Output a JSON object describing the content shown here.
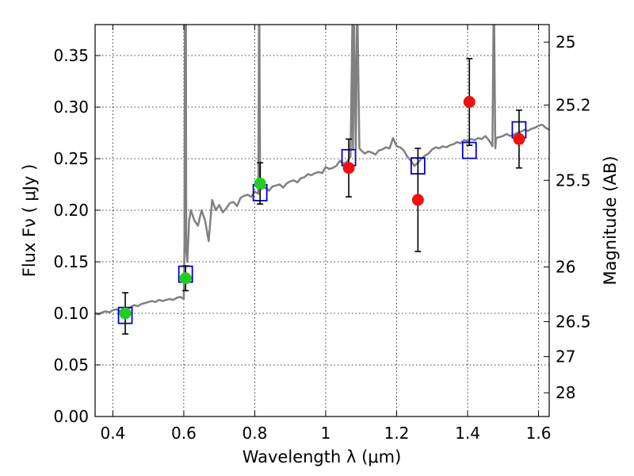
{
  "chart_data": {
    "type": "scatter",
    "xlabel": "Wavelength  λ (μm)",
    "ylabel": "Flux  Fν  ( μJy )",
    "y2label": "Magnitude (AB)",
    "xlim": [
      0.35,
      1.63
    ],
    "ylim": [
      0.0,
      0.38
    ],
    "x_ticks": [
      0.4,
      0.6,
      0.8,
      1.0,
      1.2,
      1.4,
      1.6
    ],
    "x_tick_labels": [
      "0.4",
      "0.6",
      "0.8",
      "1",
      "1.2",
      "1.4",
      "1.6"
    ],
    "y_ticks": [
      0.0,
      0.05,
      0.1,
      0.15,
      0.2,
      0.25,
      0.3,
      0.35
    ],
    "y_tick_labels": [
      "0.00",
      "0.05",
      "0.10",
      "0.15",
      "0.20",
      "0.25",
      "0.30",
      "0.35"
    ],
    "y2_ticks": [
      {
        "label": "25",
        "flux": 0.363
      },
      {
        "label": "25.2",
        "flux": 0.302
      },
      {
        "label": "25.5",
        "flux": 0.229
      },
      {
        "label": "26",
        "flux": 0.145
      },
      {
        "label": "26.5",
        "flux": 0.092
      },
      {
        "label": "27",
        "flux": 0.058
      },
      {
        "label": "28",
        "flux": 0.023
      }
    ],
    "grid": true,
    "grid_style": "dotted",
    "colors": {
      "spectrum": "#808080",
      "model_box": "#0000cc",
      "detection_green": "#22cc22",
      "detection_red": "#ee1111",
      "errorbar": "#000000"
    },
    "spectrum": {
      "x": [
        0.35,
        0.36,
        0.37,
        0.38,
        0.39,
        0.4,
        0.41,
        0.42,
        0.43,
        0.44,
        0.45,
        0.46,
        0.47,
        0.48,
        0.49,
        0.5,
        0.51,
        0.52,
        0.53,
        0.54,
        0.55,
        0.56,
        0.57,
        0.58,
        0.59,
        0.6,
        0.602,
        0.603,
        0.604,
        0.606,
        0.607,
        0.61,
        0.615,
        0.62,
        0.63,
        0.64,
        0.65,
        0.66,
        0.67,
        0.68,
        0.69,
        0.7,
        0.71,
        0.72,
        0.73,
        0.74,
        0.75,
        0.76,
        0.77,
        0.78,
        0.79,
        0.8,
        0.81,
        0.812,
        0.813,
        0.815,
        0.817,
        0.82,
        0.83,
        0.84,
        0.85,
        0.86,
        0.87,
        0.88,
        0.89,
        0.9,
        0.91,
        0.92,
        0.93,
        0.94,
        0.95,
        0.96,
        0.97,
        0.98,
        0.99,
        1.0,
        1.01,
        1.02,
        1.03,
        1.04,
        1.05,
        1.06,
        1.07,
        1.075,
        1.077,
        1.08,
        1.085,
        1.088,
        1.09,
        1.095,
        1.1,
        1.11,
        1.12,
        1.13,
        1.14,
        1.15,
        1.16,
        1.17,
        1.18,
        1.19,
        1.2,
        1.21,
        1.22,
        1.23,
        1.24,
        1.25,
        1.26,
        1.27,
        1.28,
        1.29,
        1.3,
        1.31,
        1.32,
        1.33,
        1.34,
        1.35,
        1.36,
        1.37,
        1.38,
        1.39,
        1.4,
        1.41,
        1.42,
        1.43,
        1.44,
        1.45,
        1.46,
        1.47,
        1.473,
        1.475,
        1.478,
        1.48,
        1.49,
        1.5,
        1.51,
        1.52,
        1.53,
        1.54,
        1.55,
        1.56,
        1.57,
        1.58,
        1.59,
        1.6,
        1.61,
        1.62,
        1.63
      ],
      "y": [
        0.1,
        0.099,
        0.101,
        0.102,
        0.101,
        0.103,
        0.104,
        0.102,
        0.105,
        0.104,
        0.106,
        0.108,
        0.107,
        0.109,
        0.11,
        0.111,
        0.112,
        0.111,
        0.113,
        0.112,
        0.113,
        0.114,
        0.113,
        0.115,
        0.116,
        0.114,
        0.17,
        0.38,
        0.2,
        0.38,
        0.16,
        0.15,
        0.19,
        0.2,
        0.19,
        0.185,
        0.2,
        0.19,
        0.17,
        0.21,
        0.2,
        0.205,
        0.198,
        0.202,
        0.207,
        0.208,
        0.204,
        0.212,
        0.214,
        0.215,
        0.213,
        0.218,
        0.216,
        0.38,
        0.38,
        0.23,
        0.22,
        0.221,
        0.222,
        0.219,
        0.223,
        0.224,
        0.225,
        0.222,
        0.226,
        0.228,
        0.229,
        0.227,
        0.231,
        0.232,
        0.235,
        0.234,
        0.236,
        0.237,
        0.236,
        0.242,
        0.24,
        0.241,
        0.243,
        0.248,
        0.245,
        0.247,
        0.252,
        0.38,
        0.26,
        0.38,
        0.26,
        0.38,
        0.38,
        0.26,
        0.258,
        0.255,
        0.257,
        0.256,
        0.254,
        0.258,
        0.259,
        0.261,
        0.26,
        0.27,
        0.262,
        0.261,
        0.258,
        0.252,
        0.248,
        0.243,
        0.246,
        0.25,
        0.253,
        0.255,
        0.259,
        0.261,
        0.26,
        0.262,
        0.261,
        0.263,
        0.264,
        0.266,
        0.265,
        0.268,
        0.267,
        0.269,
        0.268,
        0.27,
        0.269,
        0.272,
        0.268,
        0.262,
        0.38,
        0.38,
        0.26,
        0.27,
        0.271,
        0.272,
        0.274,
        0.272,
        0.273,
        0.275,
        0.276,
        0.278,
        0.277,
        0.279,
        0.28,
        0.282,
        0.283,
        0.28,
        0.278
      ],
      "note_on_peaks": "emission-line spikes rise above the top of the axes"
    },
    "model_boxes": [
      {
        "x": 0.435,
        "y": 0.098
      },
      {
        "x": 0.605,
        "y": 0.138
      },
      {
        "x": 0.815,
        "y": 0.217
      },
      {
        "x": 1.065,
        "y": 0.251
      },
      {
        "x": 1.26,
        "y": 0.243
      },
      {
        "x": 1.405,
        "y": 0.258
      },
      {
        "x": 1.545,
        "y": 0.278
      }
    ],
    "series": [
      {
        "points": [
          {
            "x": 0.435,
            "y": 0.1,
            "yerr": 0.02
          },
          {
            "x": 0.605,
            "y": 0.134,
            "yerr": 0.012
          },
          {
            "x": 0.815,
            "y": 0.226,
            "yerr": 0.02
          }
        ]
      },
      {
        "points": [
          {
            "x": 1.065,
            "y": 0.241,
            "yerr": 0.028
          },
          {
            "x": 1.26,
            "y": 0.21,
            "yerr": 0.05
          },
          {
            "x": 1.405,
            "y": 0.305,
            "yerr": 0.042
          },
          {
            "x": 1.545,
            "y": 0.269,
            "yerr": 0.028
          }
        ]
      }
    ]
  }
}
